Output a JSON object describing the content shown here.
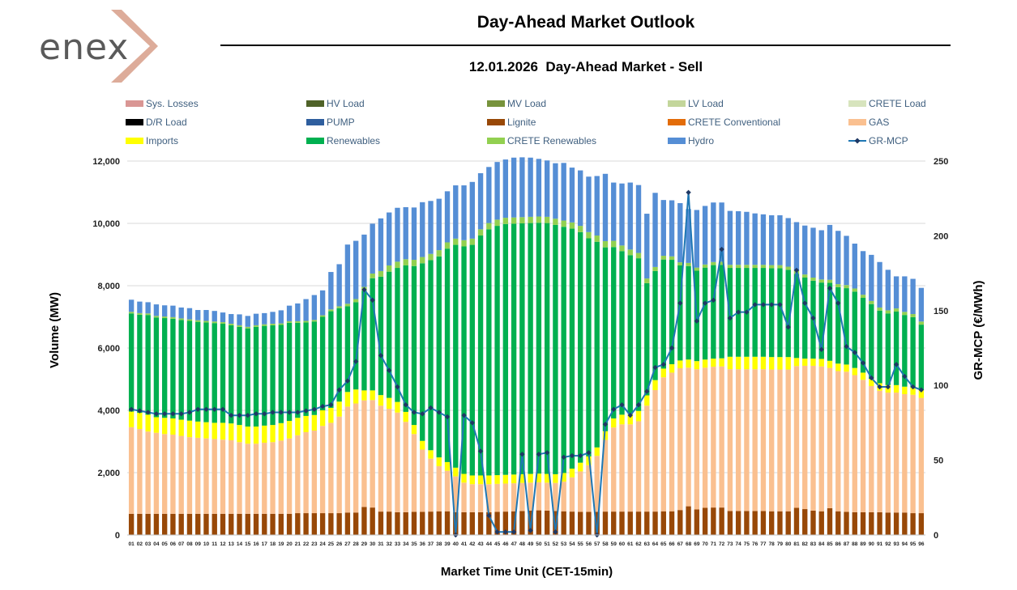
{
  "brand": {
    "logo_text": "enex"
  },
  "header": {
    "title": "Day-Ahead Market Outlook",
    "subtitle": "12.01.2026  Day-Ahead Market - Sell"
  },
  "chart_data": {
    "type": "bar",
    "stacked": true,
    "xlabel": "Market Time Unit (CET-15min)",
    "ylabel": "Volume (MW)",
    "y2label": "GR-MCP (€/MWh)",
    "ylim": [
      0,
      12000
    ],
    "yticks": [
      0,
      2000,
      4000,
      6000,
      8000,
      10000,
      12000
    ],
    "ytick_labels": [
      "0",
      "2,000",
      "4,000",
      "6,000",
      "8,000",
      "10,000",
      "12,000"
    ],
    "y2lim": [
      0,
      250
    ],
    "y2ticks": [
      0,
      50,
      100,
      150,
      200,
      250
    ],
    "y2tick_labels": [
      "0",
      "50",
      "100",
      "150",
      "200",
      "250"
    ],
    "categories": [
      "01",
      "02",
      "03",
      "04",
      "05",
      "06",
      "07",
      "08",
      "09",
      "10",
      "11",
      "12",
      "13",
      "14",
      "15",
      "16",
      "17",
      "18",
      "19",
      "20",
      "21",
      "22",
      "23",
      "24",
      "25",
      "26",
      "27",
      "28",
      "29",
      "30",
      "31",
      "32",
      "33",
      "34",
      "35",
      "36",
      "37",
      "38",
      "39",
      "40",
      "41",
      "42",
      "43",
      "44",
      "45",
      "46",
      "47",
      "48",
      "49",
      "50",
      "51",
      "52",
      "53",
      "54",
      "55",
      "56",
      "57",
      "58",
      "59",
      "60",
      "61",
      "62",
      "63",
      "64",
      "65",
      "66",
      "67",
      "68",
      "69",
      "70",
      "71",
      "72",
      "73",
      "74",
      "75",
      "76",
      "77",
      "78",
      "79",
      "80",
      "81",
      "82",
      "83",
      "84",
      "85",
      "86",
      "87",
      "88",
      "89",
      "90",
      "91",
      "92",
      "93",
      "94",
      "95",
      "96"
    ],
    "legend": [
      {
        "name": "Sys. Losses",
        "color": "#D99694",
        "kind": "bar"
      },
      {
        "name": "HV Load",
        "color": "#4F6228",
        "kind": "bar"
      },
      {
        "name": "MV Load",
        "color": "#77933C",
        "kind": "bar"
      },
      {
        "name": "LV Load",
        "color": "#C3D69B",
        "kind": "bar"
      },
      {
        "name": "CRETE Load",
        "color": "#D7E4BD",
        "kind": "bar"
      },
      {
        "name": "D/R Load",
        "color": "#000000",
        "kind": "bar"
      },
      {
        "name": "PUMP",
        "color": "#2E5E9E",
        "kind": "bar"
      },
      {
        "name": "Lignite",
        "color": "#984807",
        "kind": "bar"
      },
      {
        "name": "CRETE Conventional",
        "color": "#E36C09",
        "kind": "bar"
      },
      {
        "name": "GAS",
        "color": "#FAC090",
        "kind": "bar"
      },
      {
        "name": "Imports",
        "color": "#FFFF00",
        "kind": "bar"
      },
      {
        "name": "Renewables",
        "color": "#00B050",
        "kind": "bar"
      },
      {
        "name": "CRETE Renewables",
        "color": "#92D050",
        "kind": "bar"
      },
      {
        "name": "Hydro",
        "color": "#558ED5",
        "kind": "bar"
      },
      {
        "name": "GR-MCP",
        "color": "#1F77B4",
        "kind": "line"
      }
    ],
    "series": [
      {
        "name": "Lignite",
        "color": "#984807",
        "values": [
          680,
          680,
          680,
          680,
          680,
          680,
          680,
          680,
          680,
          680,
          680,
          680,
          680,
          680,
          680,
          680,
          680,
          680,
          680,
          680,
          700,
          700,
          700,
          700,
          700,
          700,
          720,
          720,
          900,
          880,
          750,
          750,
          730,
          730,
          740,
          740,
          750,
          760,
          760,
          730,
          730,
          730,
          730,
          730,
          740,
          750,
          760,
          770,
          780,
          790,
          780,
          770,
          760,
          750,
          740,
          740,
          740,
          750,
          750,
          750,
          750,
          750,
          750,
          750,
          760,
          760,
          800,
          920,
          820,
          870,
          880,
          880,
          770,
          770,
          770,
          770,
          770,
          760,
          760,
          760,
          870,
          830,
          780,
          760,
          860,
          760,
          740,
          730,
          730,
          730,
          730,
          720,
          720,
          720,
          700,
          700
        ]
      },
      {
        "name": "GAS",
        "color": "#FAC090",
        "values": [
          2780,
          2720,
          2640,
          2600,
          2560,
          2540,
          2500,
          2460,
          2440,
          2420,
          2400,
          2380,
          2360,
          2300,
          2250,
          2250,
          2280,
          2300,
          2350,
          2420,
          2500,
          2600,
          2650,
          2800,
          2900,
          3100,
          3400,
          3500,
          3420,
          3450,
          3400,
          3300,
          3200,
          2900,
          2500,
          2000,
          1700,
          1450,
          1300,
          1150,
          950,
          900,
          900,
          900,
          900,
          900,
          900,
          900,
          900,
          900,
          900,
          900,
          950,
          1100,
          1300,
          1500,
          1800,
          2300,
          2700,
          2800,
          2800,
          2900,
          3400,
          3900,
          4300,
          4450,
          4550,
          4450,
          4500,
          4500,
          4520,
          4530,
          4550,
          4550,
          4550,
          4550,
          4550,
          4550,
          4550,
          4550,
          4550,
          4600,
          4650,
          4650,
          4500,
          4500,
          4500,
          4400,
          4250,
          4050,
          3900,
          3850,
          3850,
          3800,
          3800,
          3700
        ]
      },
      {
        "name": "Imports",
        "color": "#FFFF00",
        "values": [
          500,
          520,
          540,
          500,
          520,
          520,
          520,
          530,
          520,
          520,
          520,
          540,
          540,
          550,
          550,
          550,
          550,
          550,
          560,
          560,
          560,
          520,
          500,
          500,
          480,
          480,
          470,
          450,
          320,
          310,
          340,
          350,
          340,
          320,
          290,
          280,
          270,
          280,
          280,
          280,
          280,
          280,
          280,
          280,
          280,
          280,
          280,
          280,
          280,
          280,
          280,
          280,
          280,
          280,
          280,
          280,
          270,
          280,
          290,
          310,
          330,
          330,
          330,
          320,
          280,
          270,
          250,
          260,
          260,
          260,
          260,
          260,
          400,
          400,
          400,
          400,
          400,
          400,
          400,
          400,
          260,
          230,
          230,
          240,
          230,
          240,
          230,
          230,
          230,
          230,
          240,
          240,
          240,
          240,
          240,
          250
        ]
      },
      {
        "name": "Renewables",
        "color": "#00B050",
        "values": [
          3150,
          3150,
          3200,
          3200,
          3200,
          3200,
          3200,
          3200,
          3200,
          3200,
          3200,
          3180,
          3150,
          3150,
          3150,
          3200,
          3200,
          3200,
          3150,
          3150,
          3050,
          3000,
          3000,
          3000,
          3100,
          3000,
          2750,
          2800,
          3200,
          3600,
          3800,
          4050,
          4300,
          4700,
          5100,
          5700,
          6100,
          6450,
          6850,
          7150,
          7300,
          7400,
          7700,
          7900,
          8000,
          8050,
          8050,
          8050,
          8050,
          8050,
          8050,
          8000,
          7900,
          7700,
          7400,
          7000,
          6600,
          5900,
          5500,
          5250,
          5100,
          4900,
          3600,
          3500,
          3500,
          3350,
          3050,
          3000,
          2900,
          2950,
          3000,
          3000,
          2850,
          2850,
          2850,
          2850,
          2850,
          2850,
          2850,
          2800,
          2700,
          2600,
          2500,
          2450,
          2500,
          2450,
          2450,
          2450,
          2400,
          2400,
          2330,
          2300,
          2360,
          2300,
          2250,
          2100
        ]
      },
      {
        "name": "CRETE Renewables",
        "color": "#92D050",
        "values": [
          50,
          50,
          50,
          50,
          50,
          50,
          50,
          50,
          50,
          50,
          50,
          50,
          50,
          50,
          50,
          50,
          50,
          50,
          50,
          50,
          50,
          50,
          50,
          50,
          60,
          60,
          80,
          100,
          120,
          150,
          180,
          200,
          200,
          200,
          200,
          200,
          200,
          200,
          200,
          200,
          200,
          200,
          200,
          200,
          200,
          200,
          200,
          200,
          200,
          200,
          200,
          200,
          200,
          200,
          200,
          200,
          200,
          200,
          200,
          180,
          180,
          170,
          150,
          130,
          120,
          110,
          100,
          100,
          100,
          100,
          100,
          100,
          100,
          100,
          100,
          100,
          100,
          100,
          100,
          100,
          100,
          100,
          100,
          100,
          100,
          100,
          100,
          100,
          100,
          100,
          100,
          100,
          100,
          100,
          100,
          100
        ]
      },
      {
        "name": "Hydro",
        "color": "#558ED5",
        "values": [
          390,
          370,
          360,
          370,
          360,
          370,
          350,
          360,
          330,
          350,
          340,
          310,
          310,
          350,
          350,
          370,
          360,
          380,
          420,
          500,
          570,
          700,
          800,
          800,
          1200,
          1350,
          1900,
          1870,
          1680,
          1600,
          1690,
          1700,
          1730,
          1670,
          1680,
          1760,
          1700,
          1650,
          1640,
          1710,
          1760,
          1820,
          1800,
          1800,
          1850,
          1870,
          1920,
          1920,
          1900,
          1850,
          1810,
          1780,
          1850,
          1760,
          1780,
          1780,
          1910,
          2160,
          1870,
          1990,
          2150,
          2180,
          2080,
          2380,
          1790,
          1800,
          1900,
          1730,
          1850,
          1880,
          1910,
          1900,
          1730,
          1720,
          1700,
          1650,
          1620,
          1600,
          1600,
          1560,
          1560,
          1570,
          1600,
          1580,
          1760,
          1710,
          1580,
          1440,
          1400,
          1480,
          1460,
          1300,
          1030,
          1140,
          1130,
          1080
        ]
      }
    ],
    "line": {
      "name": "GR-MCP",
      "color": "#1F77B4",
      "axis": "right",
      "values": [
        84,
        83,
        82,
        81,
        81,
        81,
        81,
        82,
        84,
        84,
        84,
        84,
        80,
        80,
        80,
        81,
        81,
        82,
        82,
        82,
        82,
        83,
        84,
        86,
        87,
        97,
        103,
        116,
        164,
        157,
        120,
        110,
        99,
        87,
        82,
        81,
        85,
        82,
        79,
        0,
        80,
        75,
        56,
        13,
        2,
        2,
        2,
        54,
        3,
        54,
        55,
        2,
        52,
        53,
        53,
        55,
        0,
        74,
        84,
        87,
        80,
        87,
        96,
        112,
        114,
        125,
        155,
        229,
        143,
        155,
        157,
        191,
        145,
        149,
        149,
        154,
        154,
        154,
        154,
        139,
        177,
        155,
        145,
        124,
        165,
        155,
        126,
        122,
        115,
        105,
        99,
        99,
        114,
        106,
        99,
        97
      ]
    }
  }
}
